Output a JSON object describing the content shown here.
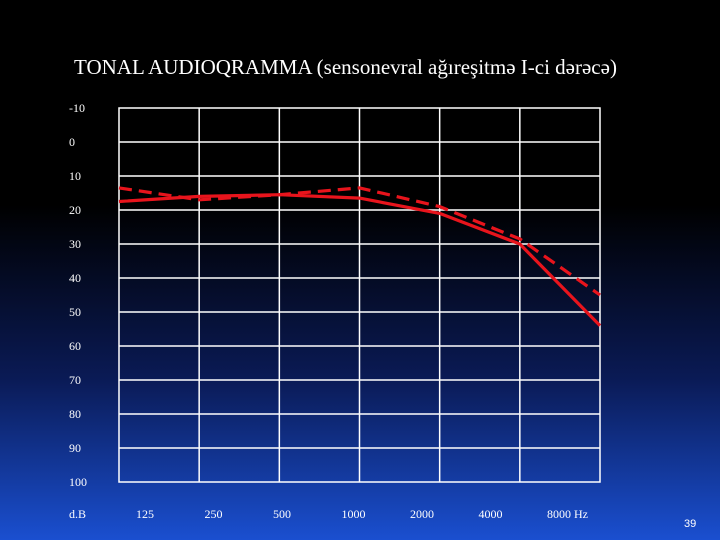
{
  "slide": {
    "title": "TONAL AUDIOQRAMMA (sensonevral ağıreşitmə I-ci dərəcə)",
    "page_number": "39"
  },
  "chart_data": {
    "type": "line",
    "title": "TONAL AUDIOQRAMMA (sensonevral ağıreşitmə I-ci dərəcə)",
    "x": [
      "125",
      "250",
      "500",
      "1000",
      "2000",
      "4000",
      "8000"
    ],
    "x_tick_labels": [
      "d.B",
      "125",
      "250",
      "500",
      "1000",
      "2000",
      "4000",
      "8000 Hz"
    ],
    "y_tick_labels": [
      "-10",
      "0",
      "10",
      "20",
      "30",
      "40",
      "50",
      "60",
      "70",
      "80",
      "90",
      "100"
    ],
    "ylim": [
      -10,
      100
    ],
    "y_inverted": true,
    "grid": true,
    "series": [
      {
        "style": "solid",
        "color": "#e8141c",
        "points": [
          [
            0,
            17.5
          ],
          [
            1,
            16
          ],
          [
            2,
            15.5
          ],
          [
            3,
            16.5
          ],
          [
            4,
            21
          ],
          [
            5,
            30
          ],
          [
            6,
            54
          ]
        ]
      },
      {
        "style": "dashed",
        "color": "#e8141c",
        "points": [
          [
            0,
            13.5
          ],
          [
            1,
            17
          ],
          [
            2,
            15.5
          ],
          [
            3,
            13.5
          ],
          [
            4,
            19
          ],
          [
            5,
            28.5
          ],
          [
            6,
            45
          ]
        ]
      }
    ]
  }
}
